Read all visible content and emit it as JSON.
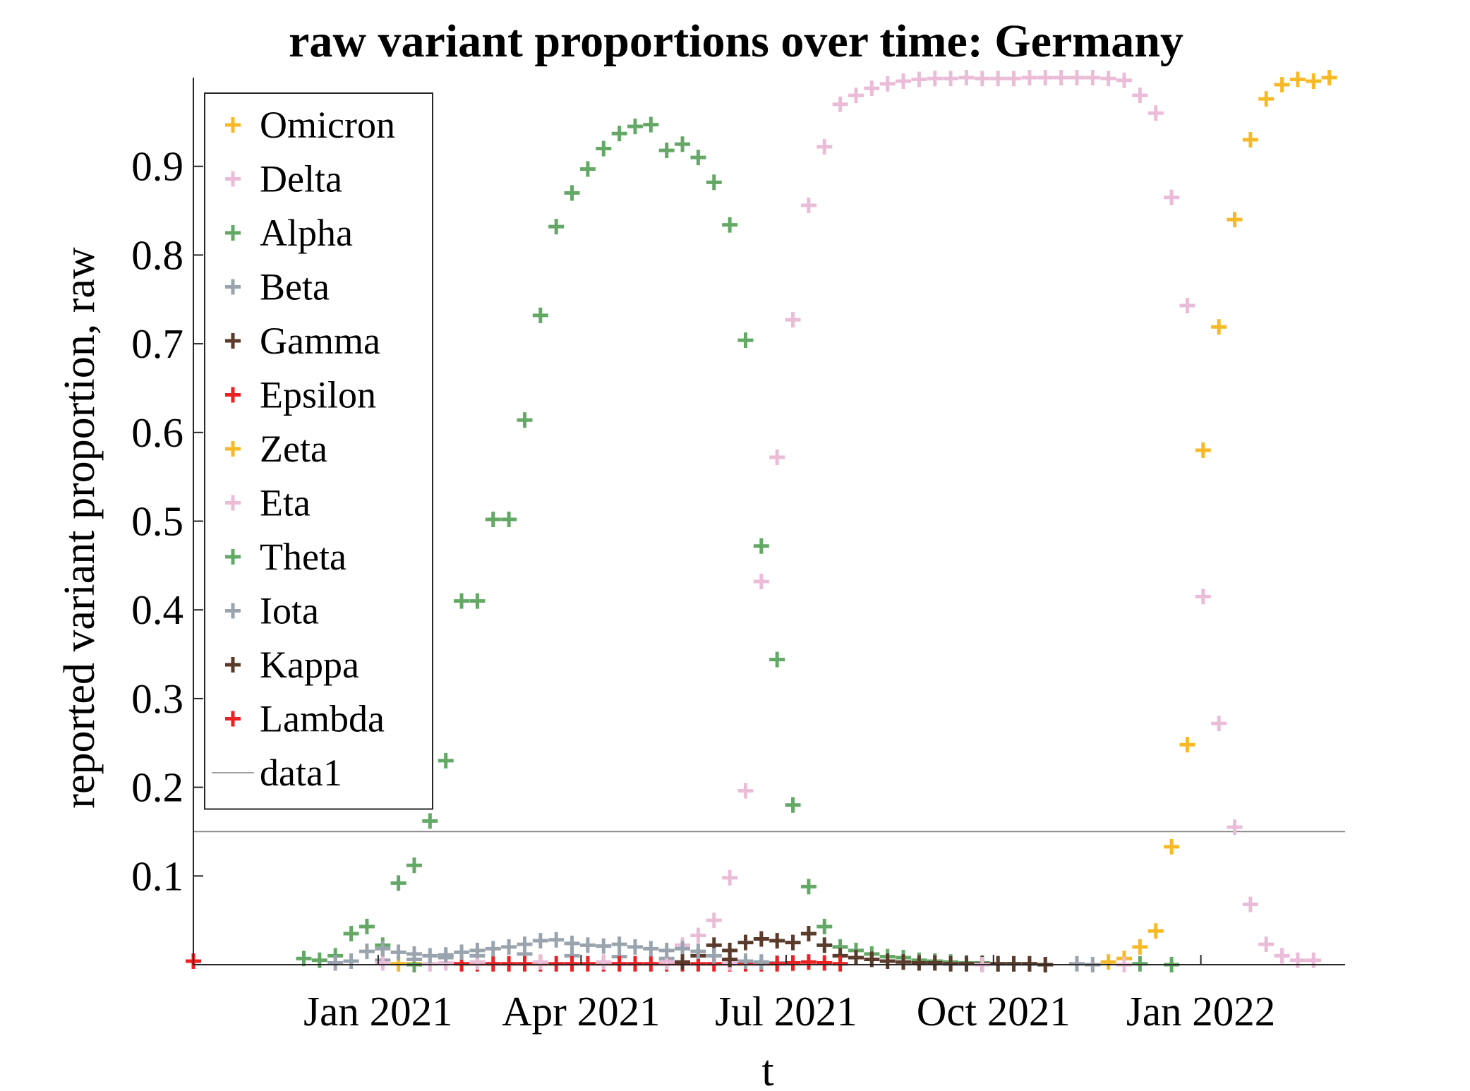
{
  "chart_data": {
    "type": "scatter",
    "title": "raw variant proportions over time: Germany",
    "xlabel": "t",
    "ylabel": "reported variant proportion, raw",
    "x_range": [
      "2020-10-11",
      "2022-03-06"
    ],
    "ylim": [
      0,
      1
    ],
    "x_ticks": [
      {
        "date": "2021-01-01",
        "label": "Jan 2021"
      },
      {
        "date": "2021-04-01",
        "label": "Apr 2021"
      },
      {
        "date": "2021-07-01",
        "label": "Jul 2021"
      },
      {
        "date": "2021-10-01",
        "label": "Oct 2021"
      },
      {
        "date": "2022-01-01",
        "label": "Jan 2022"
      }
    ],
    "y_ticks": [
      {
        "value": 0.1,
        "label": "0.1"
      },
      {
        "value": 0.2,
        "label": "0.2"
      },
      {
        "value": 0.3,
        "label": "0.3"
      },
      {
        "value": 0.4,
        "label": "0.4"
      },
      {
        "value": 0.5,
        "label": "0.5"
      },
      {
        "value": 0.6,
        "label": "0.6"
      },
      {
        "value": 0.7,
        "label": "0.7"
      },
      {
        "value": 0.8,
        "label": "0.8"
      },
      {
        "value": 0.9,
        "label": "0.9"
      }
    ],
    "grid": false,
    "legend_position": "top-left",
    "reference_line": {
      "name": "data1",
      "y": 0.15,
      "color": "#808080"
    },
    "series": [
      {
        "name": "Omicron",
        "color": "#f7b927",
        "points": [
          [
            "2021-11-21",
            0.003
          ],
          [
            "2021-11-28",
            0.007
          ],
          [
            "2021-12-05",
            0.02
          ],
          [
            "2021-12-12",
            0.038
          ],
          [
            "2021-12-19",
            0.133
          ],
          [
            "2021-12-26",
            0.248
          ],
          [
            "2022-01-02",
            0.58
          ],
          [
            "2022-01-09",
            0.719
          ],
          [
            "2022-01-16",
            0.84
          ],
          [
            "2022-01-23",
            0.93
          ],
          [
            "2022-01-30",
            0.976
          ],
          [
            "2022-02-06",
            0.992
          ],
          [
            "2022-02-13",
            0.998
          ],
          [
            "2022-02-20",
            0.996
          ],
          [
            "2022-02-27",
            1.0
          ]
        ]
      },
      {
        "name": "Delta",
        "color": "#eabcd8",
        "points": [
          [
            "2021-05-16",
            0.022
          ],
          [
            "2021-05-23",
            0.033
          ],
          [
            "2021-05-30",
            0.05
          ],
          [
            "2021-06-06",
            0.098
          ],
          [
            "2021-06-13",
            0.196
          ],
          [
            "2021-06-20",
            0.432
          ],
          [
            "2021-06-27",
            0.572
          ],
          [
            "2021-07-04",
            0.727
          ],
          [
            "2021-07-11",
            0.856
          ],
          [
            "2021-07-18",
            0.922
          ],
          [
            "2021-07-25",
            0.97
          ],
          [
            "2021-08-01",
            0.98
          ],
          [
            "2021-08-08",
            0.988
          ],
          [
            "2021-08-15",
            0.993
          ],
          [
            "2021-08-22",
            0.996
          ],
          [
            "2021-08-29",
            0.998
          ],
          [
            "2021-09-05",
            0.999
          ],
          [
            "2021-09-12",
            0.999
          ],
          [
            "2021-09-19",
            1.0
          ],
          [
            "2021-09-26",
            0.999
          ],
          [
            "2021-10-03",
            0.999
          ],
          [
            "2021-10-10",
            0.999
          ],
          [
            "2021-10-17",
            1.0
          ],
          [
            "2021-10-24",
            1.0
          ],
          [
            "2021-10-31",
            1.0
          ],
          [
            "2021-11-07",
            1.0
          ],
          [
            "2021-11-14",
            1.0
          ],
          [
            "2021-11-21",
            0.999
          ],
          [
            "2021-11-28",
            0.997
          ],
          [
            "2021-12-05",
            0.98
          ],
          [
            "2021-12-12",
            0.96
          ],
          [
            "2021-12-19",
            0.865
          ],
          [
            "2021-12-26",
            0.743
          ],
          [
            "2022-01-02",
            0.415
          ],
          [
            "2022-01-09",
            0.272
          ],
          [
            "2022-01-16",
            0.155
          ],
          [
            "2022-01-23",
            0.068
          ],
          [
            "2022-01-30",
            0.023
          ],
          [
            "2022-02-06",
            0.01
          ],
          [
            "2022-02-13",
            0.005
          ],
          [
            "2022-02-20",
            0.005
          ]
        ]
      },
      {
        "name": "Alpha",
        "color": "#64a866",
        "points": [
          [
            "2020-11-29",
            0.007
          ],
          [
            "2020-12-06",
            0.005
          ],
          [
            "2020-12-13",
            0.01
          ],
          [
            "2020-12-20",
            0.035
          ],
          [
            "2020-12-27",
            0.043
          ],
          [
            "2021-01-03",
            0.022
          ],
          [
            "2021-01-10",
            0.092
          ],
          [
            "2021-01-17",
            0.112
          ],
          [
            "2021-01-24",
            0.162
          ],
          [
            "2021-01-31",
            0.23
          ],
          [
            "2021-02-07",
            0.41
          ],
          [
            "2021-02-14",
            0.41
          ],
          [
            "2021-02-21",
            0.502
          ],
          [
            "2021-02-28",
            0.502
          ],
          [
            "2021-03-07",
            0.614
          ],
          [
            "2021-03-14",
            0.732
          ],
          [
            "2021-03-21",
            0.832
          ],
          [
            "2021-03-28",
            0.87
          ],
          [
            "2021-04-04",
            0.897
          ],
          [
            "2021-04-11",
            0.92
          ],
          [
            "2021-04-18",
            0.937
          ],
          [
            "2021-04-25",
            0.945
          ],
          [
            "2021-05-02",
            0.947
          ],
          [
            "2021-05-09",
            0.918
          ],
          [
            "2021-05-16",
            0.925
          ],
          [
            "2021-05-23",
            0.91
          ],
          [
            "2021-05-30",
            0.882
          ],
          [
            "2021-06-06",
            0.834
          ],
          [
            "2021-06-13",
            0.704
          ],
          [
            "2021-06-20",
            0.472
          ],
          [
            "2021-06-27",
            0.344
          ],
          [
            "2021-07-04",
            0.18
          ],
          [
            "2021-07-11",
            0.088
          ],
          [
            "2021-07-18",
            0.043
          ],
          [
            "2021-07-25",
            0.02
          ],
          [
            "2021-08-01",
            0.016
          ],
          [
            "2021-08-08",
            0.012
          ],
          [
            "2021-08-15",
            0.009
          ],
          [
            "2021-08-22",
            0.008
          ],
          [
            "2021-08-29",
            0.005
          ],
          [
            "2021-09-05",
            0.004
          ],
          [
            "2021-09-12",
            0.003
          ],
          [
            "2021-09-19",
            0.002
          ],
          [
            "2021-09-26",
            0.002
          ],
          [
            "2021-10-03",
            0.001
          ],
          [
            "2021-10-10",
            0.001
          ],
          [
            "2021-10-17",
            0.001
          ],
          [
            "2021-10-24",
            0.0
          ],
          [
            "2021-12-05",
            0.001
          ],
          [
            "2021-12-19",
            0.0
          ]
        ]
      },
      {
        "name": "Beta",
        "color": "#9aa4ae",
        "points": [
          [
            "2020-12-13",
            0.002
          ],
          [
            "2020-12-20",
            0.004
          ],
          [
            "2021-01-03",
            0.005
          ],
          [
            "2021-01-17",
            0.006
          ],
          [
            "2021-01-31",
            0.008
          ],
          [
            "2021-02-14",
            0.01
          ],
          [
            "2021-03-07",
            0.012
          ],
          [
            "2021-03-28",
            0.01
          ],
          [
            "2021-04-18",
            0.009
          ],
          [
            "2021-05-09",
            0.007
          ],
          [
            "2021-06-06",
            0.004
          ],
          [
            "2021-06-27",
            0.002
          ],
          [
            "2021-11-07",
            0.001
          ]
        ]
      },
      {
        "name": "Gamma",
        "color": "#5a3a2a",
        "points": [
          [
            "2021-05-23",
            0.01
          ],
          [
            "2021-05-30",
            0.022
          ],
          [
            "2021-06-06",
            0.016
          ],
          [
            "2021-06-13",
            0.025
          ],
          [
            "2021-06-20",
            0.029
          ],
          [
            "2021-06-27",
            0.027
          ],
          [
            "2021-07-04",
            0.025
          ],
          [
            "2021-07-11",
            0.035
          ],
          [
            "2021-07-18",
            0.022
          ],
          [
            "2021-07-25",
            0.01
          ],
          [
            "2021-08-01",
            0.008
          ],
          [
            "2021-08-08",
            0.006
          ],
          [
            "2021-08-15",
            0.004
          ],
          [
            "2021-08-22",
            0.003
          ],
          [
            "2021-08-29",
            0.002
          ],
          [
            "2021-09-05",
            0.002
          ],
          [
            "2021-09-12",
            0.001
          ],
          [
            "2021-09-19",
            0.001
          ],
          [
            "2021-09-26",
            0.001
          ],
          [
            "2021-10-03",
            0.001
          ],
          [
            "2021-10-10",
            0.001
          ],
          [
            "2021-10-17",
            0.001
          ],
          [
            "2021-10-24",
            0.0
          ]
        ]
      },
      {
        "name": "Epsilon",
        "color": "#ed2024",
        "points": [
          [
            "2020-10-11",
            0.004
          ],
          [
            "2021-02-07",
            0.001
          ],
          [
            "2021-02-14",
            0.001
          ],
          [
            "2021-02-21",
            0.001
          ],
          [
            "2021-02-28",
            0.001
          ],
          [
            "2021-03-07",
            0.001
          ],
          [
            "2021-03-14",
            0.001
          ],
          [
            "2021-03-21",
            0.001
          ],
          [
            "2021-03-28",
            0.001
          ],
          [
            "2021-04-04",
            0.001
          ],
          [
            "2021-04-11",
            0.001
          ],
          [
            "2021-04-18",
            0.001
          ],
          [
            "2021-04-25",
            0.001
          ],
          [
            "2021-05-02",
            0.001
          ],
          [
            "2021-05-09",
            0.001
          ],
          [
            "2021-05-16",
            0.001
          ],
          [
            "2021-05-23",
            0.001
          ],
          [
            "2021-05-30",
            0.001
          ],
          [
            "2021-06-06",
            0.001
          ],
          [
            "2021-06-13",
            0.001
          ],
          [
            "2021-06-20",
            0.001
          ]
        ]
      },
      {
        "name": "Zeta",
        "color": "#f7b927",
        "points": [
          [
            "2021-01-10",
            0.001
          ],
          [
            "2021-01-17",
            0.001
          ]
        ]
      },
      {
        "name": "Eta",
        "color": "#eabcd8",
        "points": [
          [
            "2021-01-03",
            0.002
          ],
          [
            "2021-01-24",
            0.001
          ],
          [
            "2021-01-31",
            0.002
          ],
          [
            "2021-02-14",
            0.003
          ],
          [
            "2021-03-14",
            0.003
          ],
          [
            "2021-04-11",
            0.003
          ],
          [
            "2021-05-09",
            0.003
          ],
          [
            "2021-06-06",
            0.002
          ],
          [
            "2021-07-04",
            0.001
          ],
          [
            "2021-09-26",
            0.0
          ],
          [
            "2021-11-28",
            0.0
          ]
        ]
      },
      {
        "name": "Theta",
        "color": "#64a866",
        "points": [
          [
            "2021-01-17",
            0.0
          ]
        ]
      },
      {
        "name": "Iota",
        "color": "#9aa4ae",
        "points": [
          [
            "2020-12-27",
            0.015
          ],
          [
            "2021-01-03",
            0.018
          ],
          [
            "2021-01-10",
            0.014
          ],
          [
            "2021-01-17",
            0.012
          ],
          [
            "2021-01-24",
            0.01
          ],
          [
            "2021-01-31",
            0.011
          ],
          [
            "2021-02-07",
            0.014
          ],
          [
            "2021-02-14",
            0.016
          ],
          [
            "2021-02-21",
            0.018
          ],
          [
            "2021-02-28",
            0.02
          ],
          [
            "2021-03-07",
            0.023
          ],
          [
            "2021-03-14",
            0.027
          ],
          [
            "2021-03-21",
            0.028
          ],
          [
            "2021-03-28",
            0.024
          ],
          [
            "2021-04-04",
            0.022
          ],
          [
            "2021-04-11",
            0.021
          ],
          [
            "2021-04-18",
            0.023
          ],
          [
            "2021-04-25",
            0.02
          ],
          [
            "2021-05-02",
            0.018
          ],
          [
            "2021-05-09",
            0.016
          ],
          [
            "2021-05-16",
            0.018
          ],
          [
            "2021-05-23",
            0.015
          ],
          [
            "2021-05-30",
            0.01
          ],
          [
            "2021-06-06",
            0.006
          ],
          [
            "2021-06-13",
            0.004
          ],
          [
            "2021-06-20",
            0.003
          ],
          [
            "2021-06-27",
            0.002
          ],
          [
            "2021-11-14",
            0.0
          ]
        ]
      },
      {
        "name": "Kappa",
        "color": "#5a3a2a",
        "points": [
          [
            "2021-05-16",
            0.003
          ],
          [
            "2021-06-06",
            0.006
          ],
          [
            "2021-07-04",
            0.002
          ]
        ]
      },
      {
        "name": "Lambda",
        "color": "#ed2024",
        "points": [
          [
            "2021-06-27",
            0.001
          ],
          [
            "2021-07-04",
            0.002
          ],
          [
            "2021-07-11",
            0.003
          ],
          [
            "2021-07-18",
            0.002
          ],
          [
            "2021-07-25",
            0.001
          ]
        ]
      }
    ]
  }
}
